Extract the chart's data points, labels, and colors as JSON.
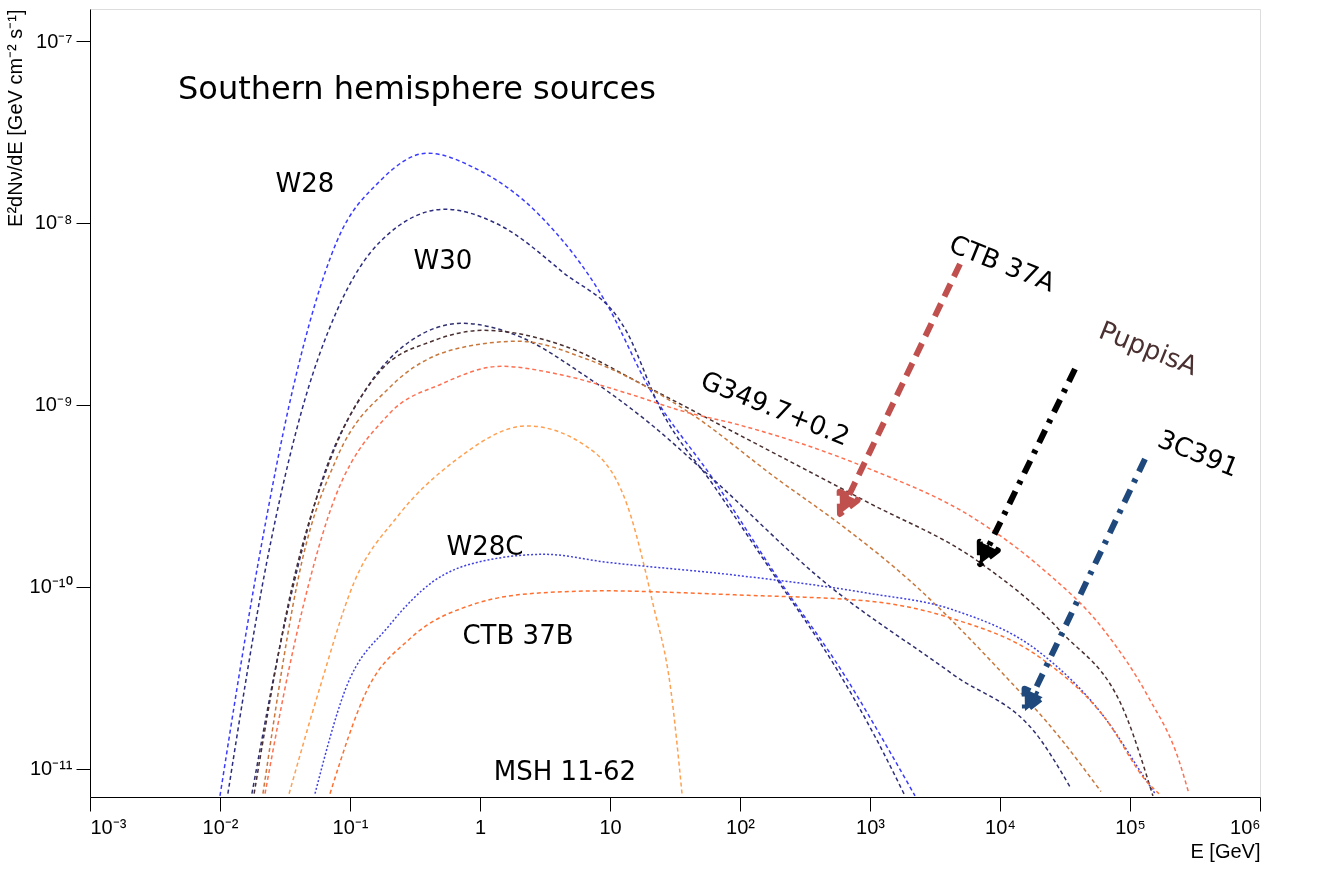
{
  "chart_data": {
    "type": "line",
    "title": "Southern hemisphere sources",
    "xlabel": "E [GeV]",
    "ylabel": "E²dNν/dE [GeV cm⁻² s⁻¹]",
    "log": "xy",
    "grid": false,
    "xlim": [
      0.001,
      1000000
    ],
    "ylim": [
      7e-12,
      1.5e-07
    ],
    "xticks": [
      {
        "value": 0.001,
        "label": "10⁻³"
      },
      {
        "value": 0.01,
        "label": "10⁻²"
      },
      {
        "value": 0.1,
        "label": "10⁻¹"
      },
      1,
      10,
      {
        "value": 100,
        "label": "10²"
      },
      {
        "value": 1000,
        "label": "10³"
      },
      {
        "value": 10000,
        "label": "10⁴"
      },
      {
        "value": 100000,
        "label": "10⁵"
      },
      {
        "value": 1000000,
        "label": "10⁶"
      }
    ],
    "yticks": [
      {
        "value": 1e-11,
        "label": "10⁻¹¹"
      },
      {
        "value": 1e-10,
        "label": "10⁻¹⁰"
      },
      {
        "value": 1e-09,
        "label": "10⁻⁹"
      },
      {
        "value": 1e-08,
        "label": "10⁻⁸"
      },
      {
        "value": 1e-07,
        "label": "10⁻⁷"
      }
    ],
    "series": [
      {
        "name": "W28",
        "color": "#3b3bff",
        "line_style": "dashed",
        "x": [
          0.01,
          0.0198,
          0.0365,
          0.0789,
          0.17,
          0.396,
          0.916,
          2.92,
          9.25,
          20.0,
          63.1,
          200,
          631,
          1370,
          2220
        ],
        "values": [
          7.1e-12,
          1.39e-10,
          1.24e-09,
          7.87e-09,
          1.7e-08,
          2.42e-08,
          2e-08,
          1.09e-08,
          3.68e-09,
          1.24e-09,
          3.85e-10,
          1.09e-10,
          3.3e-11,
          1.3e-11,
          7.1e-12
        ]
      },
      {
        "name": "W30",
        "color": "#2d2d80",
        "line_style": "dashed",
        "x": [
          0.0115,
          0.023,
          0.0427,
          0.0794,
          0.17,
          0.538,
          1.35,
          4.28,
          13.5,
          24.3,
          64.2,
          186,
          538,
          1090,
          1860
        ],
        "values": [
          7.3e-12,
          1.39e-10,
          9.4e-10,
          3.3e-09,
          7.87e-09,
          1.19e-08,
          9.9e-09,
          5.4e-09,
          2.51e-09,
          9.6e-10,
          3.52e-10,
          1.14e-10,
          3.66e-11,
          1.51e-11,
          7.1e-12
        ]
      },
      {
        "name": "3C391",
        "color": "#303070",
        "line_style": "dashed",
        "x": [
          0.0176,
          0.034,
          0.0631,
          0.135,
          0.29,
          0.727,
          2.0,
          6.31,
          20.0,
          57.8,
          428,
          4350,
          20300,
          34500
        ],
        "values": [
          7.3e-12,
          8.07e-11,
          4.14e-10,
          1.24e-09,
          2.24e-09,
          2.81e-09,
          2.38e-09,
          1.46e-09,
          7.97e-10,
          4.09e-10,
          1.09e-10,
          3.3e-11,
          1.46e-11,
          7.98e-12
        ]
      },
      {
        "name": "PuppisA",
        "color": "#4a3030",
        "line_style": "dashed",
        "x": [
          0.0183,
          0.0365,
          0.0678,
          0.17,
          0.428,
          1.07,
          4.28,
          20.0,
          91.6,
          931,
          6890,
          29400,
          94800,
          150000
        ],
        "values": [
          7.3e-12,
          1.06e-10,
          4.65e-10,
          1.53e-09,
          2.24e-09,
          2.57e-09,
          2.13e-09,
          1.24e-09,
          7.03e-10,
          2.95e-10,
          1.37e-10,
          5.68e-11,
          1.9e-11,
          7.1e-12
        ]
      },
      {
        "name": "CTB 37A",
        "color": "#c8783c",
        "line_style": "dashed",
        "x": [
          0.0214,
          0.0428,
          0.0794,
          0.2,
          0.631,
          2.0,
          6.31,
          37.8,
          200,
          631,
          2000,
          9310,
          29400,
          59800
        ],
        "values": [
          7.3e-12,
          1.39e-10,
          5.13e-10,
          1.24e-09,
          2.02e-09,
          2.24e-09,
          1.81e-09,
          9.4e-10,
          3.85e-10,
          2.13e-10,
          1.09e-10,
          3.66e-11,
          1.46e-11,
          7.5e-12
        ]
      },
      {
        "name": "G349.7+0.2",
        "color": "#ff7050",
        "line_style": "dashed",
        "x": [
          0.0222,
          0.034,
          0.0678,
          0.2,
          0.501,
          1.45,
          4.28,
          13.5,
          37.8,
          91.6,
          931,
          6430,
          20300,
          64300,
          137000,
          238000,
          284000
        ],
        "values": [
          7.3e-12,
          3.56e-11,
          2.42e-10,
          8.93e-10,
          1.3e-09,
          1.63e-09,
          1.46e-09,
          1.16e-09,
          9.16e-10,
          7.87e-10,
          4.53e-10,
          2.36e-10,
          1.29e-10,
          5.68e-11,
          2.51e-11,
          1.11e-11,
          7.3e-12
        ]
      },
      {
        "name": "MSH 11-62",
        "color": "#ffa050",
        "line_style": "dashed",
        "x": [
          0.034,
          0.0578,
          0.107,
          0.23,
          0.631,
          2.3,
          6.31,
          13.5,
          21.4,
          29.4,
          35.8
        ],
        "values": [
          7.3e-12,
          2.7e-11,
          1.05e-10,
          2.42e-10,
          4.89e-10,
          7.67e-10,
          6.04e-10,
          2.84e-10,
          8.07e-11,
          2.7e-11,
          7.3e-12
        ]
      },
      {
        "name": "W28C",
        "color": "#4040e0",
        "line_style": "dotted",
        "x": [
          0.0538,
          0.0916,
          0.2,
          0.428,
          1.07,
          3.16,
          9.16,
          91.6,
          931,
          4350,
          20300,
          64300,
          137000,
          156000
        ],
        "values": [
          7.3e-12,
          2.7e-11,
          6.12e-11,
          1.06e-10,
          1.39e-10,
          1.51e-10,
          1.37e-10,
          1.16e-10,
          9.27e-11,
          7.48e-11,
          4.36e-11,
          1.9e-11,
          8.38e-12,
          7.3e-12
        ]
      },
      {
        "name": "CTB 37B",
        "color": "#ff7030",
        "line_style": "dashed",
        "x": [
          0.0702,
          0.135,
          0.29,
          0.916,
          2.94,
          9.31,
          37.8,
          91.6,
          931,
          4350,
          20300,
          64300,
          137000,
          167000
        ],
        "values": [
          7.3e-12,
          2.7e-11,
          5.2e-11,
          8.07e-11,
          9.27e-11,
          9.51e-11,
          9.27e-11,
          9.04e-11,
          8.38e-11,
          6.68e-11,
          4.09e-11,
          1.9e-11,
          8.38e-12,
          7.3e-12
        ]
      }
    ]
  }
}
